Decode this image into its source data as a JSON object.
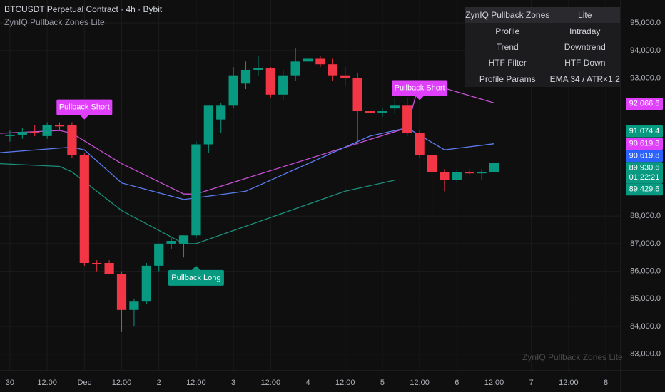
{
  "header": {
    "title": "BTCUSDT Perpetual Contract · 4h · Bybit",
    "subtitle": "ZynIQ Pullback Zones Lite",
    "watermark": "ZynIQ Pullback Zones Lite"
  },
  "table": {
    "rows": [
      [
        "ZynIQ Pullback Zones",
        "Lite"
      ],
      [
        "Profile",
        "Intraday"
      ],
      [
        "Trend",
        "Downtrend"
      ],
      [
        "HTF Filter",
        "HTF Down"
      ],
      [
        "Profile Params",
        "EMA 34 / ATR×1.2"
      ]
    ]
  },
  "chart_data": {
    "type": "candlestick",
    "up_color": "#089981",
    "down_color": "#f23645",
    "grid": true,
    "x": [
      1,
      2,
      3,
      4,
      5,
      6,
      7,
      8,
      9,
      10,
      11,
      12,
      13,
      14,
      15,
      16,
      17,
      18,
      19,
      20,
      21,
      22,
      23,
      24,
      25,
      26,
      27,
      28,
      29,
      30,
      31,
      32,
      33,
      34,
      35,
      36,
      37,
      38,
      39,
      40
    ],
    "open": [
      90900,
      90950,
      91050,
      90900,
      91300,
      91300,
      90200,
      86300,
      86300,
      85900,
      84600,
      84900,
      86200,
      87000,
      87000,
      87300,
      90600,
      91500,
      92000,
      92800,
      93300,
      93350,
      92400,
      93100,
      93600,
      93700,
      93500,
      93100,
      93000,
      91800,
      91750,
      91900,
      92000,
      91000,
      90200,
      89600,
      89300,
      89600,
      89550,
      89600
    ],
    "high": [
      91100,
      91200,
      91300,
      91400,
      91400,
      91400,
      90300,
      86400,
      86400,
      86000,
      85000,
      86300,
      87000,
      87200,
      87300,
      90700,
      92000,
      92100,
      93400,
      93600,
      93800,
      93400,
      93300,
      94100,
      94000,
      93800,
      93700,
      93400,
      93200,
      92000,
      91900,
      92300,
      92300,
      91100,
      90300,
      89700,
      89700,
      89700,
      89700,
      90200
    ],
    "low": [
      90700,
      90800,
      90900,
      90800,
      91100,
      90100,
      86200,
      86000,
      85900,
      83800,
      84000,
      84800,
      86000,
      86800,
      86500,
      87200,
      90300,
      91000,
      91900,
      92600,
      93100,
      92300,
      92200,
      92900,
      93300,
      93400,
      92900,
      92700,
      90600,
      91500,
      91600,
      91700,
      90900,
      90100,
      88000,
      88900,
      89200,
      89500,
      89300,
      89500
    ],
    "close": [
      90950,
      91050,
      91000,
      91300,
      91250,
      90200,
      86300,
      86250,
      85900,
      84600,
      84900,
      86200,
      87000,
      87100,
      87300,
      90600,
      92000,
      92000,
      93100,
      93300,
      93350,
      92400,
      93100,
      93600,
      93700,
      93500,
      93100,
      93000,
      91800,
      91750,
      91800,
      92000,
      91000,
      90200,
      89600,
      89300,
      89600,
      89550,
      89600,
      89930.6
    ],
    "xlim": [
      0.2,
      50.2
    ],
    "ylim": [
      82400,
      95830
    ],
    "yticks": [
      {
        "value": 83000,
        "label": "83,000.0"
      },
      {
        "value": 84000,
        "label": "84,000.0"
      },
      {
        "value": 85000,
        "label": "85,000.0"
      },
      {
        "value": 86000,
        "label": "86,000.0"
      },
      {
        "value": 87000,
        "label": "87,000.0"
      },
      {
        "value": 88000,
        "label": "88,000.0"
      },
      {
        "value": 93000,
        "label": "93,000.0"
      },
      {
        "value": 94000,
        "label": "94,000.0"
      },
      {
        "value": 95000,
        "label": "95,000.0"
      }
    ],
    "xticks": [
      {
        "value": 1,
        "label": "30"
      },
      {
        "value": 4,
        "label": "12:00"
      },
      {
        "value": 7,
        "label": "Dec"
      },
      {
        "value": 10,
        "label": "12:00"
      },
      {
        "value": 13,
        "label": "2"
      },
      {
        "value": 16,
        "label": "12:00"
      },
      {
        "value": 19,
        "label": "3"
      },
      {
        "value": 22,
        "label": "12:00"
      },
      {
        "value": 25,
        "label": "4"
      },
      {
        "value": 28,
        "label": "12:00"
      },
      {
        "value": 31,
        "label": "5"
      },
      {
        "value": 34,
        "label": "12:00"
      },
      {
        "value": 37,
        "label": "6"
      },
      {
        "value": 40,
        "label": "12:00"
      },
      {
        "value": 43,
        "label": "7"
      },
      {
        "value": 46,
        "label": "12:00"
      },
      {
        "value": 49,
        "label": "8"
      }
    ],
    "series": [
      {
        "color": "#c94fd6",
        "x": [
          0.2,
          5,
          6,
          10,
          15,
          16,
          33,
          34,
          40
        ],
        "values": [
          91000,
          91100,
          91000,
          89900,
          88800,
          88800,
          91200,
          92900,
          92100
        ]
      },
      {
        "color": "#5b7cf0",
        "x": [
          0.2,
          6,
          7,
          10,
          15,
          20,
          26,
          30,
          33,
          36,
          40
        ],
        "values": [
          90300,
          90500,
          90400,
          89200,
          88600,
          88900,
          90100,
          90900,
          91200,
          90400,
          90620
        ]
      },
      {
        "color": "#1a8f7a",
        "x": [
          0.2,
          5,
          6,
          10,
          15,
          16,
          28,
          32
        ],
        "values": [
          89900,
          89800,
          89600,
          88200,
          87000,
          87000,
          88900,
          89300
        ]
      }
    ],
    "annotations": [
      {
        "text": "Pullback Short",
        "x": 7,
        "y": 91500,
        "color": "#e040fb",
        "dir": "down"
      },
      {
        "text": "Pullback Long",
        "x": 16,
        "y": 86200,
        "color": "#089981",
        "dir": "up"
      },
      {
        "text": "Pullback Short",
        "x": 34,
        "y": 92200,
        "color": "#e040fb",
        "dir": "down"
      }
    ],
    "price_labels": [
      {
        "value": 92066.6,
        "label": "92,066.6",
        "color": "#e040fb"
      },
      {
        "value": 91074.4,
        "label": "91,074.4",
        "color": "#089981"
      },
      {
        "value": 90619.8,
        "label": "90,619.8",
        "color": "#e040fb"
      },
      {
        "value": 90619.8,
        "label": "90,619.8",
        "color": "#2962ff"
      },
      {
        "value": 89930.6,
        "label": "89,930.6",
        "color": "#089981",
        "countdown": "01:22:21"
      },
      {
        "value": 89429.6,
        "label": "89,429.6",
        "color": "#089981"
      }
    ]
  }
}
